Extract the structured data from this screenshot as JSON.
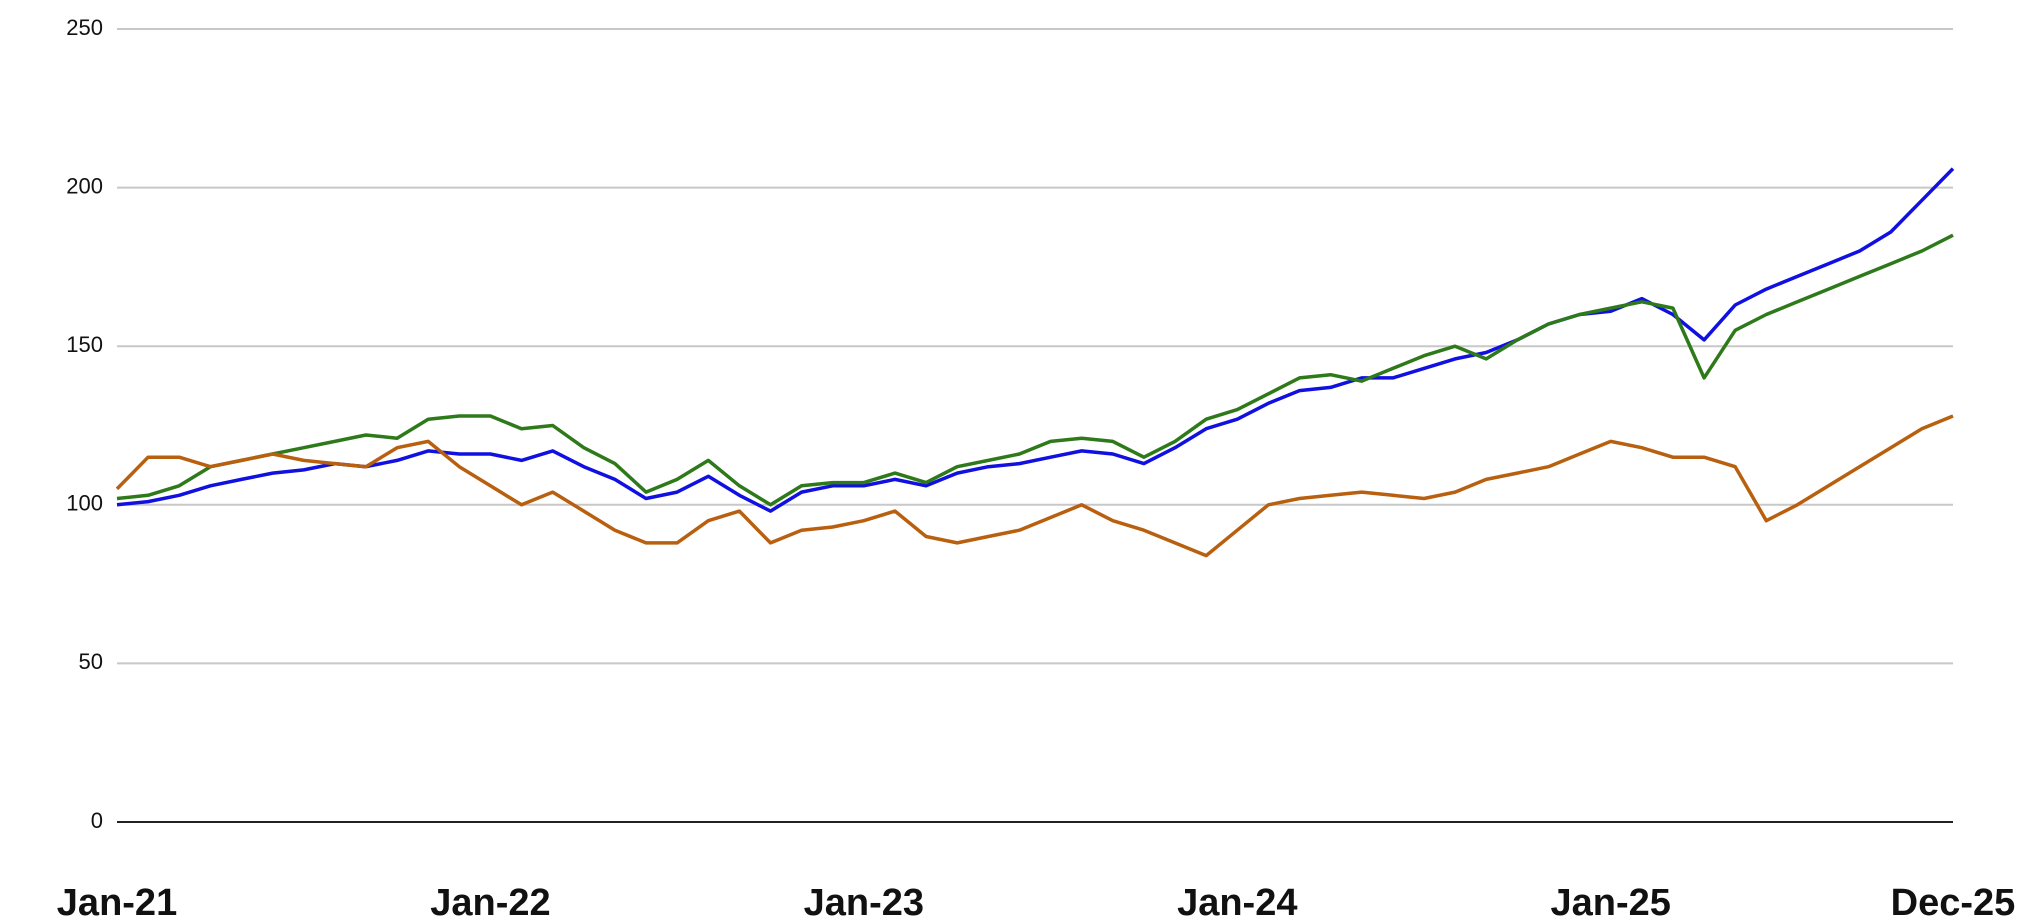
{
  "chart_data": {
    "type": "line",
    "categories": [
      "Jan-21",
      null,
      null,
      null,
      null,
      null,
      null,
      null,
      null,
      null,
      null,
      null,
      "Jan-22",
      null,
      null,
      null,
      null,
      null,
      null,
      null,
      null,
      null,
      null,
      null,
      "Jan-23",
      null,
      null,
      null,
      null,
      null,
      null,
      null,
      null,
      null,
      null,
      null,
      "Jan-24",
      null,
      null,
      null,
      null,
      null,
      null,
      null,
      null,
      null,
      null,
      null,
      "Jan-25",
      null,
      null,
      null,
      null,
      null,
      null,
      null,
      null,
      null,
      null,
      "Dec-25"
    ],
    "series": [
      {
        "color": "#1010e0",
        "values": [
          100,
          101,
          103,
          106,
          108,
          110,
          111,
          113,
          112,
          114,
          117,
          116,
          116,
          114,
          117,
          112,
          108,
          102,
          104,
          109,
          103,
          98,
          104,
          106,
          106,
          108,
          106,
          110,
          112,
          113,
          115,
          117,
          116,
          113,
          118,
          124,
          127,
          132,
          136,
          137,
          140,
          140,
          143,
          146,
          148,
          152,
          157,
          160,
          161,
          165,
          160,
          152,
          163,
          168,
          172,
          176,
          180,
          186,
          196,
          206
        ]
      },
      {
        "color": "#2e7a1a",
        "values": [
          102,
          103,
          106,
          112,
          114,
          116,
          118,
          120,
          122,
          121,
          127,
          128,
          128,
          124,
          125,
          118,
          113,
          104,
          108,
          114,
          106,
          100,
          106,
          107,
          107,
          110,
          107,
          112,
          114,
          116,
          120,
          121,
          120,
          115,
          120,
          127,
          130,
          135,
          140,
          141,
          139,
          143,
          147,
          150,
          146,
          152,
          157,
          160,
          162,
          164,
          162,
          140,
          155,
          160,
          164,
          168,
          172,
          176,
          180,
          185
        ]
      },
      {
        "color": "#b8600f",
        "values": [
          105,
          115,
          115,
          112,
          114,
          116,
          114,
          113,
          112,
          118,
          120,
          112,
          106,
          100,
          104,
          98,
          92,
          88,
          88,
          95,
          98,
          88,
          92,
          93,
          95,
          98,
          90,
          88,
          90,
          92,
          96,
          100,
          95,
          92,
          88,
          84,
          92,
          100,
          102,
          103,
          104,
          103,
          102,
          104,
          108,
          110,
          112,
          116,
          120,
          118,
          115,
          115,
          112,
          95,
          100,
          106,
          112,
          118,
          124,
          128
        ]
      }
    ],
    "ylim": [
      0,
      250
    ],
    "yticks": [
      0,
      50,
      100,
      150,
      200,
      250
    ],
    "grid": true
  }
}
